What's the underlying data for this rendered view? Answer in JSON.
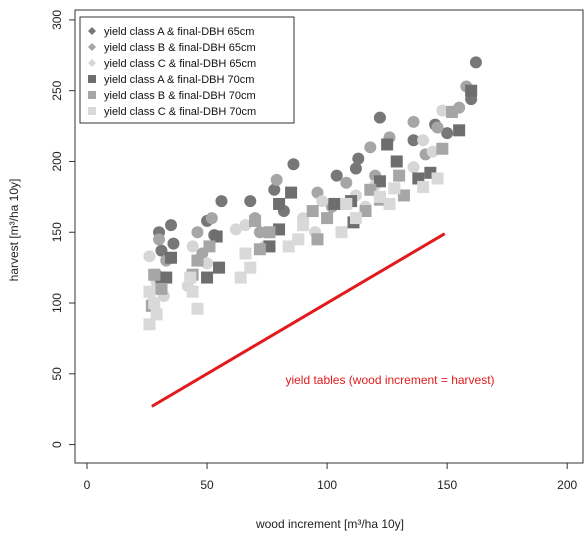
{
  "chart_data": {
    "type": "scatter",
    "xlabel": "wood increment [m³/ha 10y]",
    "ylabel": "harvest [m³/ha 10y]",
    "xlim": [
      -5,
      207
    ],
    "ylim": [
      -13,
      307
    ],
    "xticks": [
      0,
      50,
      100,
      150,
      200
    ],
    "yticks": [
      0,
      50,
      100,
      150,
      200,
      250,
      300
    ],
    "grid": false,
    "legend_position": "top-left",
    "series": [
      {
        "name": "yield class A & final-DBH 65cm",
        "marker": "circle",
        "color": "#777777",
        "points": [
          [
            30,
            150
          ],
          [
            35,
            155
          ],
          [
            31,
            137
          ],
          [
            36,
            142
          ],
          [
            50,
            158
          ],
          [
            56,
            172
          ],
          [
            53,
            148
          ],
          [
            68,
            172
          ],
          [
            78,
            180
          ],
          [
            86,
            198
          ],
          [
            82,
            165
          ],
          [
            104,
            190
          ],
          [
            113,
            202
          ],
          [
            122,
            231
          ],
          [
            112,
            195
          ],
          [
            136,
            215
          ],
          [
            145,
            226
          ],
          [
            152,
            235
          ],
          [
            150,
            220
          ],
          [
            160,
            244
          ],
          [
            162,
            270
          ]
        ]
      },
      {
        "name": "yield class B & final-DBH 65cm",
        "marker": "circle",
        "color": "#a6a6a6",
        "points": [
          [
            30,
            145
          ],
          [
            33,
            130
          ],
          [
            29,
            120
          ],
          [
            46,
            150
          ],
          [
            52,
            160
          ],
          [
            48,
            135
          ],
          [
            70,
            160
          ],
          [
            79,
            187
          ],
          [
            72,
            150
          ],
          [
            96,
            178
          ],
          [
            108,
            185
          ],
          [
            102,
            168
          ],
          [
            118,
            210
          ],
          [
            126,
            217
          ],
          [
            120,
            190
          ],
          [
            136,
            228
          ],
          [
            141,
            205
          ],
          [
            146,
            224
          ],
          [
            155,
            238
          ],
          [
            158,
            253
          ]
        ]
      },
      {
        "name": "yield class C & final-DBH 65cm",
        "marker": "circle",
        "color": "#d6d6d6",
        "points": [
          [
            26,
            133
          ],
          [
            29,
            115
          ],
          [
            27,
            100
          ],
          [
            32,
            105
          ],
          [
            44,
            140
          ],
          [
            50,
            128
          ],
          [
            42,
            112
          ],
          [
            66,
            155
          ],
          [
            74,
            140
          ],
          [
            62,
            152
          ],
          [
            90,
            160
          ],
          [
            98,
            172
          ],
          [
            95,
            150
          ],
          [
            112,
            176
          ],
          [
            120,
            183
          ],
          [
            116,
            168
          ],
          [
            136,
            196
          ],
          [
            144,
            207
          ],
          [
            140,
            215
          ],
          [
            148,
            236
          ]
        ]
      },
      {
        "name": "yield class A & final-DBH 70cm",
        "marker": "square",
        "color": "#6e6e6e",
        "points": [
          [
            35,
            132
          ],
          [
            33,
            118
          ],
          [
            31,
            112
          ],
          [
            54,
            147
          ],
          [
            55,
            125
          ],
          [
            50,
            118
          ],
          [
            80,
            170
          ],
          [
            85,
            178
          ],
          [
            76,
            140
          ],
          [
            80,
            152
          ],
          [
            103,
            170
          ],
          [
            110,
            172
          ],
          [
            111,
            157
          ],
          [
            125,
            212
          ],
          [
            129,
            200
          ],
          [
            122,
            186
          ],
          [
            138,
            188
          ],
          [
            143,
            192
          ],
          [
            155,
            222
          ],
          [
            160,
            250
          ]
        ]
      },
      {
        "name": "yield class B & final-DBH 70cm",
        "marker": "square",
        "color": "#a6a6a6",
        "points": [
          [
            28,
            120
          ],
          [
            31,
            110
          ],
          [
            27,
            98
          ],
          [
            46,
            130
          ],
          [
            51,
            140
          ],
          [
            44,
            120
          ],
          [
            70,
            158
          ],
          [
            76,
            150
          ],
          [
            72,
            138
          ],
          [
            94,
            165
          ],
          [
            100,
            160
          ],
          [
            96,
            145
          ],
          [
            118,
            180
          ],
          [
            122,
            173
          ],
          [
            116,
            165
          ],
          [
            130,
            190
          ],
          [
            132,
            176
          ],
          [
            148,
            209
          ],
          [
            152,
            235
          ]
        ]
      },
      {
        "name": "yield class C & final-DBH 70cm",
        "marker": "square",
        "color": "#d9d9d9",
        "points": [
          [
            26,
            85
          ],
          [
            28,
            100
          ],
          [
            29,
            92
          ],
          [
            26,
            108
          ],
          [
            44,
            108
          ],
          [
            46,
            96
          ],
          [
            43,
            118
          ],
          [
            64,
            118
          ],
          [
            68,
            125
          ],
          [
            66,
            135
          ],
          [
            84,
            140
          ],
          [
            90,
            155
          ],
          [
            88,
            145
          ],
          [
            108,
            170
          ],
          [
            112,
            160
          ],
          [
            106,
            150
          ],
          [
            122,
            175
          ],
          [
            128,
            181
          ],
          [
            126,
            170
          ],
          [
            140,
            182
          ],
          [
            146,
            188
          ]
        ]
      }
    ],
    "reference_line": {
      "label": "yield tables (wood increment = harvest)",
      "color": "#e31a1c",
      "x": [
        27,
        149
      ],
      "y": [
        27,
        149
      ]
    }
  }
}
